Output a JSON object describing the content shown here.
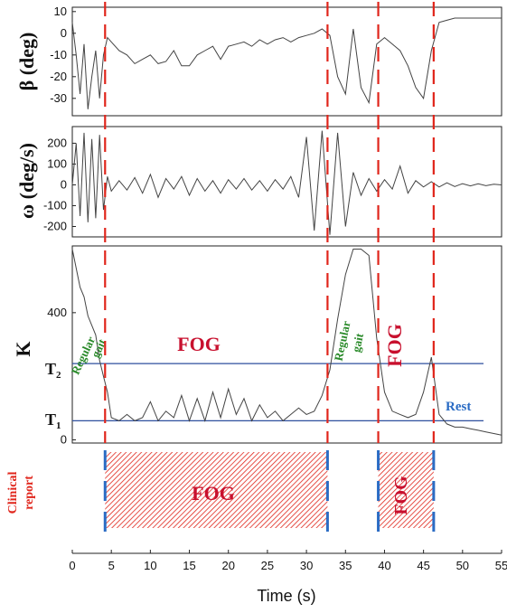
{
  "chart_data": {
    "type": "line",
    "xlabel": "Time (s)",
    "xlim": [
      0,
      55
    ],
    "xticks": [
      0,
      5,
      10,
      15,
      20,
      25,
      30,
      35,
      40,
      45,
      50,
      55
    ],
    "event_lines_s": [
      4.2,
      32.7,
      39.2,
      46.3
    ],
    "panels": [
      {
        "ylabel": "β (deg)",
        "ylim": [
          -38,
          12
        ],
        "yticks": [
          10,
          0,
          -10,
          -20,
          -30
        ],
        "x": [
          0,
          0.5,
          1,
          1.5,
          2,
          2.5,
          3,
          3.5,
          4,
          4.5,
          5,
          6,
          7,
          8,
          9,
          10,
          11,
          12,
          13,
          14,
          15,
          16,
          17,
          18,
          19,
          20,
          21,
          22,
          23,
          24,
          25,
          26,
          27,
          28,
          29,
          30,
          31,
          32,
          33,
          34,
          35,
          36,
          37,
          38,
          39,
          40,
          41,
          42,
          43,
          44,
          45,
          46,
          47,
          48,
          49,
          50,
          51,
          52,
          53,
          54,
          55
        ],
        "y": [
          5,
          -10,
          -28,
          -5,
          -35,
          -20,
          -8,
          -30,
          -10,
          -2,
          -4,
          -8,
          -10,
          -14,
          -12,
          -10,
          -14,
          -13,
          -8,
          -15,
          -15,
          -10,
          -8,
          -6,
          -12,
          -6,
          -5,
          -4,
          -6,
          -3,
          -5,
          -3,
          -2,
          -4,
          -2,
          -1,
          0,
          2,
          -1,
          -20,
          -28,
          2,
          -25,
          -32,
          -5,
          -2,
          -5,
          -8,
          -15,
          -25,
          -30,
          -8,
          5,
          6,
          7,
          7,
          7,
          7,
          7,
          7,
          7
        ]
      },
      {
        "ylabel": "ω (deg/s)",
        "ylim": [
          -250,
          280
        ],
        "yticks": [
          200,
          100,
          0,
          -100,
          -200
        ],
        "x": [
          0,
          0.5,
          1,
          1.5,
          2,
          2.5,
          3,
          3.5,
          4,
          4.5,
          5,
          6,
          7,
          8,
          9,
          10,
          11,
          12,
          13,
          14,
          15,
          16,
          17,
          18,
          19,
          20,
          21,
          22,
          23,
          24,
          25,
          26,
          27,
          28,
          29,
          30,
          31,
          32,
          33,
          34,
          35,
          36,
          37,
          38,
          39,
          40,
          41,
          42,
          43,
          44,
          45,
          46,
          47,
          48,
          49,
          50,
          51,
          52,
          53,
          54,
          55
        ],
        "y": [
          0,
          200,
          -150,
          250,
          -180,
          220,
          -160,
          240,
          -120,
          40,
          -30,
          20,
          -25,
          35,
          -40,
          50,
          -60,
          30,
          -20,
          40,
          -50,
          30,
          -30,
          20,
          -40,
          25,
          -20,
          30,
          -25,
          20,
          -30,
          25,
          -20,
          40,
          -60,
          230,
          -220,
          260,
          -240,
          250,
          -200,
          60,
          -50,
          30,
          -30,
          25,
          -20,
          90,
          -40,
          20,
          -10,
          15,
          -10,
          10,
          -8,
          6,
          -5,
          5,
          -4,
          3,
          0
        ]
      },
      {
        "ylabel": "K",
        "ylim": [
          -10,
          610
        ],
        "yticks": [
          400,
          0
        ],
        "thresholds": [
          {
            "label": "T2",
            "value": 240
          },
          {
            "label": "T1",
            "value": 60
          }
        ],
        "x": [
          0,
          0.5,
          1,
          1.5,
          2,
          2.5,
          3,
          3.5,
          4,
          4.5,
          5,
          6,
          7,
          8,
          9,
          10,
          11,
          12,
          13,
          14,
          15,
          16,
          17,
          18,
          19,
          20,
          21,
          22,
          23,
          24,
          25,
          26,
          27,
          28,
          29,
          30,
          31,
          32,
          33,
          34,
          35,
          36,
          37,
          38,
          39,
          40,
          41,
          42,
          43,
          44,
          45,
          46,
          47,
          48,
          49,
          50,
          51,
          52,
          53,
          54,
          55
        ],
        "y": [
          600,
          540,
          480,
          450,
          390,
          360,
          330,
          250,
          200,
          150,
          70,
          60,
          80,
          60,
          70,
          120,
          60,
          90,
          70,
          140,
          60,
          130,
          60,
          150,
          70,
          160,
          80,
          130,
          60,
          110,
          70,
          90,
          60,
          80,
          100,
          80,
          90,
          140,
          220,
          380,
          520,
          600,
          600,
          580,
          320,
          150,
          90,
          80,
          70,
          80,
          150,
          260,
          80,
          50,
          40,
          40,
          35,
          30,
          25,
          20,
          15
        ]
      }
    ],
    "annotations": {
      "regular_gait_left": [
        "Regular",
        "gait"
      ],
      "regular_gait_mid": [
        "Regular",
        "gait"
      ],
      "fog_main": "FOG",
      "fog_second": "FOG",
      "rest": "Rest",
      "t2": [
        "T",
        "2"
      ],
      "t1": [
        "T",
        "1"
      ]
    },
    "clinical_report": {
      "label": [
        "Clinical",
        "report"
      ],
      "segments": [
        {
          "start_s": 4.2,
          "end_s": 32.7,
          "label": "FOG"
        },
        {
          "start_s": 39.2,
          "end_s": 46.3,
          "label": "FOG"
        }
      ]
    },
    "colors": {
      "signal": "#444444",
      "event_line": "#e0251b",
      "threshold": "#2d4f9e",
      "fog_hatch": "#e0251b",
      "report_edge": "#2b6cc4"
    }
  }
}
